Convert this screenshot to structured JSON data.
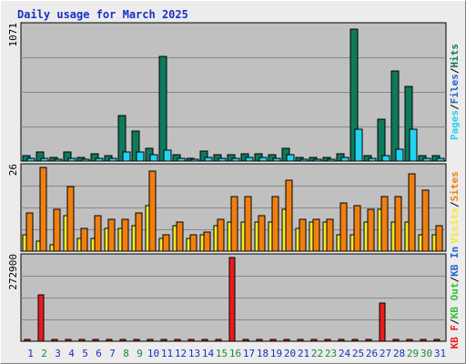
{
  "chart_data": {
    "type": "bar",
    "title": "Daily usage for March 2025",
    "categories": [
      "1",
      "2",
      "3",
      "4",
      "5",
      "6",
      "7",
      "8",
      "9",
      "10",
      "11",
      "12",
      "13",
      "14",
      "15",
      "16",
      "17",
      "18",
      "19",
      "20",
      "21",
      "22",
      "23",
      "24",
      "25",
      "26",
      "27",
      "28",
      "29",
      "30",
      "31"
    ],
    "weekend_days": [
      "2",
      "8",
      "9",
      "15",
      "16",
      "22",
      "23",
      "29",
      "30"
    ],
    "panels": [
      {
        "id": "top",
        "ymax_label": "1071",
        "ymax": 1071,
        "series": [
          {
            "name": "Hits",
            "color": "#0e7a5c",
            "values": [
              40,
              70,
              30,
              70,
              30,
              55,
              40,
              360,
              240,
              100,
              830,
              50,
              20,
              80,
              50,
              50,
              55,
              55,
              50,
              100,
              30,
              30,
              30,
              60,
              1050,
              40,
              330,
              720,
              590,
              40,
              40
            ]
          },
          {
            "name": "Files",
            "color": "#2565c8",
            "values": [
              0,
              0,
              0,
              0,
              0,
              0,
              0,
              0,
              0,
              0,
              0,
              0,
              0,
              0,
              0,
              0,
              0,
              0,
              0,
              0,
              0,
              0,
              0,
              0,
              0,
              0,
              0,
              0,
              0,
              0,
              0
            ]
          },
          {
            "name": "Pages",
            "color": "#22d2f0",
            "values": [
              20,
              25,
              15,
              25,
              15,
              20,
              25,
              70,
              70,
              50,
              90,
              25,
              10,
              30,
              25,
              25,
              30,
              30,
              25,
              50,
              15,
              15,
              15,
              30,
              250,
              20,
              40,
              95,
              250,
              20,
              20
            ]
          }
        ]
      },
      {
        "id": "mid",
        "ymax_label": "26",
        "ymax": 26,
        "series": [
          {
            "name": "Visits",
            "color": "#f5e82a",
            "values": [
              5,
              3,
              2,
              11,
              4,
              4,
              7,
              7,
              8,
              14,
              4,
              8,
              4,
              5,
              8,
              9,
              9,
              9,
              9,
              13,
              7,
              9,
              9,
              5,
              5,
              9,
              13,
              9,
              9,
              5,
              5
            ]
          },
          {
            "name": "Sites",
            "color": "#f07f10",
            "values": [
              12,
              26,
              13,
              20,
              7,
              11,
              10,
              10,
              12,
              25,
              5,
              9,
              5,
              6,
              10,
              17,
              17,
              11,
              17,
              22,
              10,
              10,
              10,
              15,
              14,
              13,
              17,
              17,
              24,
              19,
              8
            ]
          }
        ]
      },
      {
        "id": "bot",
        "ymax_label": "272900",
        "ymax": 272900,
        "series": [
          {
            "name": "KB In",
            "color": "#2565c8",
            "values": [
              0,
              0,
              0,
              0,
              0,
              0,
              0,
              0,
              0,
              0,
              0,
              0,
              0,
              0,
              0,
              0,
              0,
              0,
              0,
              0,
              0,
              0,
              0,
              0,
              0,
              0,
              0,
              0,
              0,
              0,
              0
            ]
          },
          {
            "name": "KB Out",
            "color": "#2ec42e",
            "values": [
              0,
              0,
              0,
              0,
              0,
              0,
              0,
              0,
              0,
              0,
              0,
              0,
              0,
              0,
              0,
              0,
              0,
              0,
              0,
              0,
              0,
              0,
              0,
              0,
              0,
              0,
              0,
              0,
              0,
              0,
              0
            ]
          },
          {
            "name": "KB F",
            "color": "#e81c1c",
            "values": [
              0,
              150000,
              0,
              0,
              0,
              0,
              0,
              0,
              0,
              0,
              0,
              0,
              0,
              0,
              0,
              272900,
              0,
              0,
              0,
              0,
              0,
              0,
              0,
              0,
              0,
              0,
              125000,
              0,
              0,
              0,
              0
            ]
          }
        ]
      }
    ],
    "side_legends": [
      [
        {
          "text": "Pages",
          "color": "#22d2f0"
        },
        {
          "text": "/",
          "color": "#000000"
        },
        {
          "text": "Files",
          "color": "#2565c8"
        },
        {
          "text": "/",
          "color": "#000000"
        },
        {
          "text": "Hits",
          "color": "#0e7a5c"
        }
      ],
      [
        {
          "text": "Visits",
          "color": "#f5e82a"
        },
        {
          "text": "/",
          "color": "#000000"
        },
        {
          "text": "Sites",
          "color": "#f07f10"
        }
      ],
      [
        {
          "text": "KB F",
          "color": "#e81c1c"
        },
        {
          "text": "/",
          "color": "#000000"
        },
        {
          "text": "KB Out",
          "color": "#2ec42e"
        },
        {
          "text": "/",
          "color": "#000000"
        },
        {
          "text": "KB In",
          "color": "#2565c8"
        }
      ]
    ],
    "colors": {
      "plot_bg": "#c0c0c0",
      "page_bg": "#ececec",
      "grid": "#888888",
      "weekday_label": "#1a2fc4",
      "weekend_label": "#1a8a3a"
    }
  }
}
